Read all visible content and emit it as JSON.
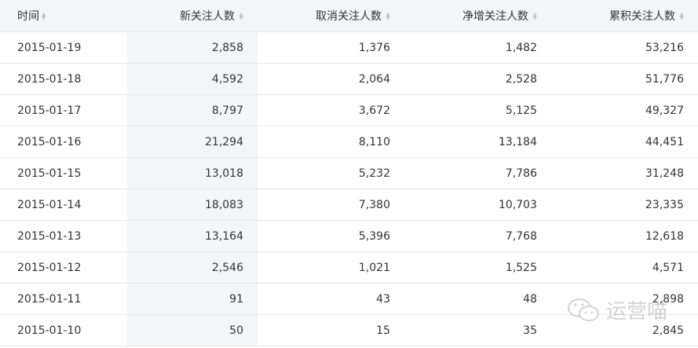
{
  "columns": [
    "时间",
    "新关注人数",
    "取消关注人数",
    "净增关注人数",
    "累积关注人数"
  ],
  "rows": [
    [
      "2015-01-19",
      "2,858",
      "1,376",
      "1,482",
      "53,216"
    ],
    [
      "2015-01-18",
      "4,592",
      "2,064",
      "2,528",
      "51,776"
    ],
    [
      "2015-01-17",
      "8,797",
      "3,672",
      "5,125",
      "49,327"
    ],
    [
      "2015-01-16",
      "21,294",
      "8,110",
      "13,184",
      "44,451"
    ],
    [
      "2015-01-15",
      "13,018",
      "5,232",
      "7,786",
      "31,248"
    ],
    [
      "2015-01-14",
      "18,083",
      "7,380",
      "10,703",
      "23,335"
    ],
    [
      "2015-01-13",
      "13,164",
      "5,396",
      "7,768",
      "12,618"
    ],
    [
      "2015-01-12",
      "2,546",
      "1,021",
      "1,525",
      "4,571"
    ],
    [
      "2015-01-11",
      "91",
      "43",
      "48",
      "2,898"
    ],
    [
      "2015-01-10",
      "50",
      "15",
      "35",
      "2,845"
    ]
  ],
  "watermark": {
    "text": "运营喵",
    "icon": "wechat-icon"
  },
  "colors": {
    "header_bg": "#f4f5f9",
    "highlight_col": "#f4f5f9",
    "border": "#e7e7eb"
  }
}
